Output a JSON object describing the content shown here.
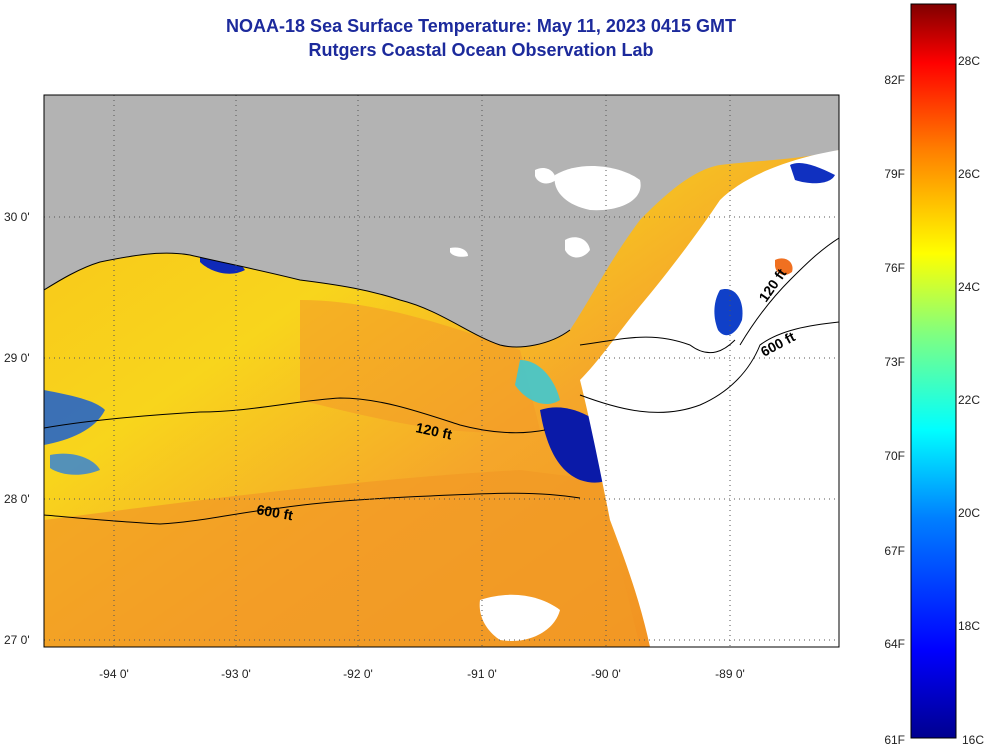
{
  "title": "NOAA-18 Sea Surface Temperature:  May 11, 2023 0415 GMT",
  "subtitle": "Rutgers Coastal Ocean Observation Lab",
  "map": {
    "longitude_labels": [
      "-94 0'",
      "-93 0'",
      "-92 0'",
      "-91 0'",
      "-90 0'",
      "-89 0'"
    ],
    "latitude_labels": [
      "30 0'",
      "29 0'",
      "28 0'",
      "27 0'"
    ],
    "contours": [
      {
        "label": "120 ft"
      },
      {
        "label": "600 ft"
      },
      {
        "label": "120 ft"
      },
      {
        "label": "600 ft"
      }
    ],
    "colors": {
      "land": "#b3b3b3",
      "cloud_mask": "#ffffff",
      "warm_water": "#f5a020",
      "cool_water": "#1020c0"
    }
  },
  "colorbar": {
    "fahrenheit_labels": [
      "82F",
      "79F",
      "76F",
      "73F",
      "70F",
      "67F",
      "64F",
      "61F"
    ],
    "celsius_labels": [
      "28C",
      "26C",
      "24C",
      "22C",
      "20C",
      "18C",
      "16C"
    ],
    "range_c": [
      16,
      29
    ]
  }
}
